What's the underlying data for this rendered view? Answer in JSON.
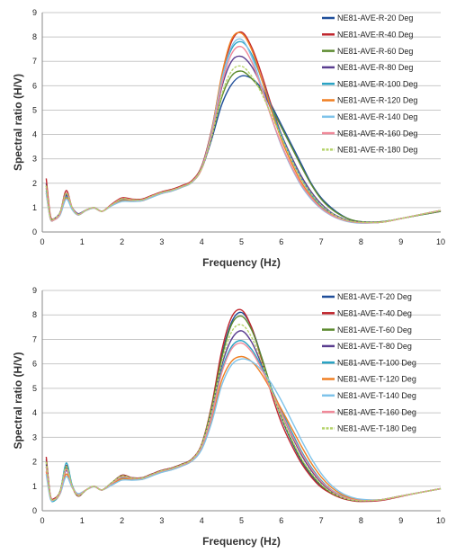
{
  "chart_data": [
    {
      "type": "line",
      "xlabel": "Frequency (Hz)",
      "ylabel": "Spectral ratio (H/V)",
      "xlim": [
        0,
        10
      ],
      "ylim": [
        0,
        9
      ],
      "xticks": [
        "0",
        "1",
        "2",
        "3",
        "4",
        "5",
        "6",
        "7",
        "8",
        "9",
        "10"
      ],
      "yticks": [
        "0",
        "1",
        "2",
        "3",
        "4",
        "5",
        "6",
        "7",
        "8",
        "9"
      ],
      "grid": "horizontal",
      "legend_position": "top-right",
      "x": [
        0.1,
        0.2,
        0.3,
        0.45,
        0.6,
        0.75,
        0.9,
        1.1,
        1.3,
        1.5,
        1.75,
        2.0,
        2.25,
        2.5,
        2.75,
        3.0,
        3.25,
        3.5,
        3.75,
        4.0,
        4.25,
        4.5,
        4.75,
        5.0,
        5.25,
        5.5,
        5.75,
        6.0,
        6.25,
        6.5,
        6.75,
        7.0,
        7.25,
        7.5,
        7.75,
        8.0,
        8.5,
        9.0,
        9.5,
        10.0
      ],
      "series": [
        {
          "name": "NE81-AVE-R-20 Deg",
          "color": "#1f4e9a",
          "values": [
            2.0,
            0.6,
            0.5,
            0.75,
            1.55,
            1.0,
            0.75,
            0.9,
            1.0,
            0.85,
            1.1,
            1.35,
            1.3,
            1.3,
            1.45,
            1.6,
            1.7,
            1.85,
            2.05,
            2.6,
            3.8,
            5.2,
            6.05,
            6.4,
            6.3,
            5.9,
            5.2,
            4.4,
            3.6,
            2.8,
            2.0,
            1.4,
            1.0,
            0.7,
            0.5,
            0.42,
            0.42,
            0.55,
            0.7,
            0.85
          ]
        },
        {
          "name": "NE81-AVE-R-40 Deg",
          "color": "#c0262d",
          "values": [
            2.2,
            0.7,
            0.55,
            0.8,
            1.7,
            1.0,
            0.7,
            0.9,
            1.0,
            0.85,
            1.15,
            1.4,
            1.35,
            1.35,
            1.5,
            1.65,
            1.75,
            1.9,
            2.1,
            2.7,
            4.2,
            6.3,
            7.8,
            8.2,
            7.6,
            6.5,
            5.2,
            4.0,
            3.0,
            2.2,
            1.55,
            1.05,
            0.75,
            0.55,
            0.42,
            0.38,
            0.4,
            0.55,
            0.72,
            0.88
          ]
        },
        {
          "name": "NE81-AVE-R-60 Deg",
          "color": "#5c8a2e",
          "values": [
            1.9,
            0.6,
            0.55,
            0.8,
            1.6,
            1.0,
            0.72,
            0.9,
            1.0,
            0.85,
            1.12,
            1.35,
            1.32,
            1.32,
            1.47,
            1.62,
            1.72,
            1.86,
            2.06,
            2.62,
            3.9,
            5.5,
            6.4,
            6.6,
            6.3,
            5.8,
            5.1,
            4.3,
            3.5,
            2.7,
            1.95,
            1.35,
            0.95,
            0.68,
            0.5,
            0.42,
            0.42,
            0.55,
            0.7,
            0.85
          ]
        },
        {
          "name": "NE81-AVE-R-80 Deg",
          "color": "#5a3d8f",
          "values": [
            1.8,
            0.6,
            0.55,
            0.8,
            1.5,
            1.0,
            0.75,
            0.9,
            1.0,
            0.85,
            1.1,
            1.3,
            1.3,
            1.3,
            1.45,
            1.6,
            1.7,
            1.85,
            2.05,
            2.6,
            3.95,
            5.9,
            7.0,
            7.2,
            6.8,
            6.0,
            5.0,
            4.0,
            3.1,
            2.3,
            1.65,
            1.15,
            0.8,
            0.58,
            0.45,
            0.4,
            0.4,
            0.55,
            0.72,
            0.87
          ]
        },
        {
          "name": "NE81-AVE-R-100 Deg",
          "color": "#2aa3c4",
          "values": [
            1.7,
            0.6,
            0.5,
            0.75,
            1.45,
            0.95,
            0.72,
            0.9,
            1.0,
            0.85,
            1.1,
            1.3,
            1.28,
            1.3,
            1.45,
            1.6,
            1.7,
            1.85,
            2.05,
            2.65,
            4.1,
            6.2,
            7.5,
            7.8,
            7.3,
            6.3,
            5.1,
            3.95,
            3.0,
            2.2,
            1.55,
            1.05,
            0.75,
            0.55,
            0.43,
            0.38,
            0.4,
            0.55,
            0.72,
            0.88
          ]
        },
        {
          "name": "NE81-AVE-R-120 Deg",
          "color": "#f07f22",
          "values": [
            1.6,
            0.55,
            0.5,
            0.75,
            1.4,
            0.95,
            0.7,
            0.88,
            0.98,
            0.85,
            1.1,
            1.28,
            1.28,
            1.28,
            1.43,
            1.58,
            1.68,
            1.83,
            2.03,
            2.6,
            4.15,
            6.4,
            7.9,
            8.15,
            7.5,
            6.3,
            5.0,
            3.8,
            2.85,
            2.05,
            1.45,
            1.0,
            0.72,
            0.53,
            0.42,
            0.38,
            0.4,
            0.55,
            0.72,
            0.88
          ]
        },
        {
          "name": "NE81-AVE-R-140 Deg",
          "color": "#7ec3ea",
          "values": [
            1.6,
            0.55,
            0.5,
            0.7,
            1.35,
            0.92,
            0.7,
            0.88,
            0.98,
            0.85,
            1.08,
            1.25,
            1.25,
            1.28,
            1.42,
            1.58,
            1.68,
            1.83,
            2.03,
            2.62,
            4.1,
            6.2,
            7.6,
            7.9,
            7.2,
            6.0,
            4.7,
            3.55,
            2.65,
            1.9,
            1.35,
            0.95,
            0.68,
            0.5,
            0.4,
            0.36,
            0.4,
            0.55,
            0.72,
            0.88
          ]
        },
        {
          "name": "NE81-AVE-R-160 Deg",
          "color": "#f08a9a",
          "values": [
            1.9,
            0.6,
            0.5,
            0.75,
            1.6,
            1.0,
            0.72,
            0.9,
            1.0,
            0.85,
            1.12,
            1.36,
            1.32,
            1.32,
            1.47,
            1.62,
            1.72,
            1.86,
            2.06,
            2.62,
            4.0,
            6.0,
            7.3,
            7.6,
            7.0,
            5.9,
            4.7,
            3.6,
            2.7,
            1.95,
            1.4,
            0.98,
            0.7,
            0.52,
            0.42,
            0.38,
            0.4,
            0.55,
            0.72,
            0.88
          ]
        },
        {
          "name": "NE81-AVE-R-180 Deg",
          "color": "#b5d36a",
          "values": [
            1.9,
            0.6,
            0.55,
            0.8,
            1.6,
            1.0,
            0.72,
            0.9,
            1.0,
            0.85,
            1.12,
            1.36,
            1.32,
            1.32,
            1.47,
            1.62,
            1.72,
            1.86,
            2.06,
            2.62,
            3.9,
            5.6,
            6.6,
            6.8,
            6.4,
            5.7,
            4.8,
            3.9,
            3.0,
            2.2,
            1.58,
            1.1,
            0.78,
            0.56,
            0.44,
            0.4,
            0.4,
            0.55,
            0.72,
            0.88
          ]
        }
      ]
    },
    {
      "type": "line",
      "xlabel": "Frequency (Hz)",
      "ylabel": "Spectral ratio (H/V)",
      "xlim": [
        0,
        10
      ],
      "ylim": [
        0,
        9
      ],
      "xticks": [
        "0",
        "1",
        "2",
        "3",
        "4",
        "5",
        "6",
        "7",
        "8",
        "9",
        "10"
      ],
      "yticks": [
        "0",
        "1",
        "2",
        "3",
        "4",
        "5",
        "6",
        "7",
        "8",
        "9"
      ],
      "grid": "horizontal",
      "legend_position": "top-right",
      "x": [
        0.1,
        0.2,
        0.3,
        0.45,
        0.6,
        0.75,
        0.9,
        1.1,
        1.3,
        1.5,
        1.75,
        2.0,
        2.25,
        2.5,
        2.75,
        3.0,
        3.25,
        3.5,
        3.75,
        4.0,
        4.25,
        4.5,
        4.75,
        5.0,
        5.25,
        5.5,
        5.75,
        6.0,
        6.25,
        6.5,
        6.75,
        7.0,
        7.25,
        7.5,
        7.75,
        8.0,
        8.5,
        9.0,
        9.5,
        10.0
      ],
      "series": [
        {
          "name": "NE81-AVE-T-20 Deg",
          "color": "#1f4e9a",
          "values": [
            2.1,
            0.6,
            0.45,
            0.8,
            1.8,
            1.0,
            0.6,
            0.85,
            1.0,
            0.85,
            1.15,
            1.45,
            1.35,
            1.35,
            1.5,
            1.65,
            1.75,
            1.9,
            2.1,
            2.7,
            4.2,
            6.3,
            7.7,
            8.1,
            7.5,
            6.3,
            5.0,
            3.8,
            2.85,
            2.05,
            1.45,
            1.0,
            0.72,
            0.53,
            0.43,
            0.4,
            0.45,
            0.6,
            0.75,
            0.9
          ]
        },
        {
          "name": "NE81-AVE-T-40 Deg",
          "color": "#c0262d",
          "values": [
            2.2,
            0.65,
            0.5,
            0.8,
            1.85,
            1.0,
            0.6,
            0.85,
            1.0,
            0.85,
            1.15,
            1.45,
            1.35,
            1.35,
            1.5,
            1.65,
            1.75,
            1.9,
            2.1,
            2.72,
            4.3,
            6.5,
            7.9,
            8.2,
            7.5,
            6.2,
            4.8,
            3.6,
            2.7,
            1.95,
            1.38,
            0.96,
            0.7,
            0.52,
            0.42,
            0.38,
            0.42,
            0.58,
            0.75,
            0.9
          ]
        },
        {
          "name": "NE81-AVE-T-60 Deg",
          "color": "#5c8a2e",
          "values": [
            2.0,
            0.6,
            0.45,
            0.8,
            1.75,
            1.0,
            0.62,
            0.85,
            1.0,
            0.85,
            1.15,
            1.42,
            1.33,
            1.33,
            1.48,
            1.63,
            1.73,
            1.88,
            2.08,
            2.68,
            4.2,
            6.2,
            7.6,
            7.95,
            7.4,
            6.3,
            5.0,
            3.85,
            2.9,
            2.1,
            1.5,
            1.04,
            0.74,
            0.55,
            0.44,
            0.4,
            0.45,
            0.6,
            0.75,
            0.9
          ]
        },
        {
          "name": "NE81-AVE-T-80 Deg",
          "color": "#5a3d8f",
          "values": [
            1.9,
            0.6,
            0.45,
            0.75,
            1.65,
            1.0,
            0.65,
            0.85,
            1.0,
            0.85,
            1.12,
            1.38,
            1.32,
            1.32,
            1.47,
            1.62,
            1.72,
            1.86,
            2.06,
            2.64,
            4.0,
            5.9,
            7.0,
            7.35,
            6.9,
            6.0,
            5.0,
            4.0,
            3.1,
            2.3,
            1.65,
            1.15,
            0.8,
            0.58,
            0.46,
            0.42,
            0.45,
            0.6,
            0.75,
            0.9
          ]
        },
        {
          "name": "NE81-AVE-T-100 Deg",
          "color": "#2aa3c4",
          "values": [
            1.8,
            0.55,
            0.4,
            0.75,
            1.95,
            1.05,
            0.65,
            0.85,
            1.0,
            0.85,
            1.1,
            1.35,
            1.3,
            1.3,
            1.45,
            1.6,
            1.7,
            1.85,
            2.05,
            2.6,
            3.9,
            5.7,
            6.7,
            6.95,
            6.6,
            5.9,
            5.0,
            4.1,
            3.25,
            2.45,
            1.78,
            1.24,
            0.86,
            0.62,
            0.48,
            0.42,
            0.45,
            0.6,
            0.75,
            0.9
          ]
        },
        {
          "name": "NE81-AVE-T-120 Deg",
          "color": "#f07f22",
          "values": [
            1.6,
            0.55,
            0.45,
            0.7,
            1.5,
            0.95,
            0.68,
            0.85,
            0.98,
            0.85,
            1.08,
            1.3,
            1.28,
            1.28,
            1.43,
            1.58,
            1.68,
            1.83,
            2.03,
            2.55,
            3.7,
            5.3,
            6.1,
            6.3,
            6.1,
            5.6,
            4.9,
            4.15,
            3.4,
            2.65,
            1.95,
            1.38,
            0.96,
            0.68,
            0.52,
            0.45,
            0.45,
            0.6,
            0.75,
            0.9
          ]
        },
        {
          "name": "NE81-AVE-T-140 Deg",
          "color": "#7ec3ea",
          "values": [
            1.5,
            0.5,
            0.45,
            0.7,
            1.4,
            0.95,
            0.7,
            0.85,
            0.98,
            0.85,
            1.05,
            1.25,
            1.25,
            1.28,
            1.42,
            1.57,
            1.67,
            1.82,
            2.02,
            2.5,
            3.6,
            5.1,
            5.95,
            6.2,
            6.1,
            5.75,
            5.2,
            4.5,
            3.7,
            2.9,
            2.15,
            1.52,
            1.05,
            0.74,
            0.56,
            0.47,
            0.45,
            0.6,
            0.75,
            0.9
          ]
        },
        {
          "name": "NE81-AVE-T-160 Deg",
          "color": "#f08a9a",
          "values": [
            1.8,
            0.6,
            0.45,
            0.75,
            1.7,
            1.0,
            0.65,
            0.85,
            1.0,
            0.85,
            1.12,
            1.38,
            1.32,
            1.32,
            1.47,
            1.62,
            1.72,
            1.86,
            2.06,
            2.62,
            3.85,
            5.6,
            6.6,
            6.85,
            6.5,
            5.8,
            4.9,
            4.0,
            3.15,
            2.38,
            1.72,
            1.2,
            0.84,
            0.6,
            0.47,
            0.42,
            0.45,
            0.6,
            0.75,
            0.9
          ]
        },
        {
          "name": "NE81-AVE-T-180 Deg",
          "color": "#b5d36a",
          "values": [
            2.0,
            0.6,
            0.45,
            0.8,
            1.8,
            1.0,
            0.62,
            0.85,
            1.0,
            0.85,
            1.15,
            1.42,
            1.33,
            1.33,
            1.48,
            1.63,
            1.73,
            1.88,
            2.08,
            2.68,
            4.1,
            6.0,
            7.3,
            7.6,
            7.1,
            6.1,
            4.95,
            3.85,
            2.95,
            2.15,
            1.55,
            1.08,
            0.76,
            0.56,
            0.45,
            0.41,
            0.45,
            0.6,
            0.75,
            0.9
          ]
        }
      ]
    }
  ]
}
